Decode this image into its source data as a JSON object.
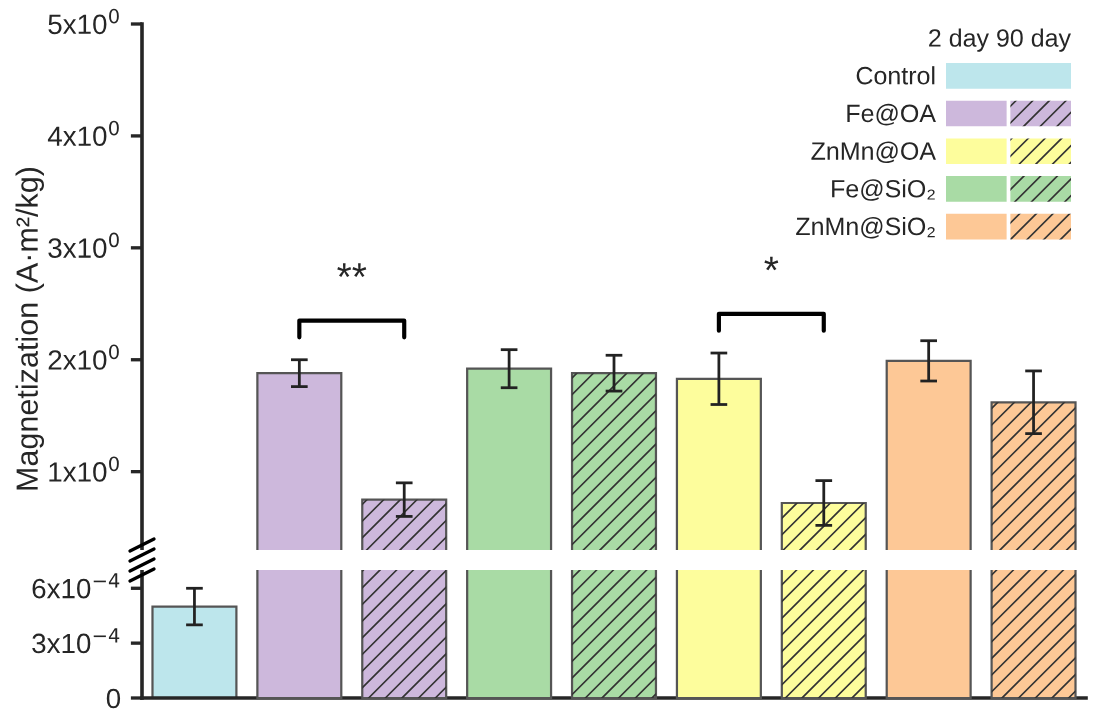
{
  "chart_data": [
    {
      "type": "bar",
      "ylabel": "Magnetization (A·m²/kg)",
      "categories": [
        null,
        null,
        null,
        null
      ],
      "legend_title": "2 day 90 day",
      "series": [
        {
          "colors": [
            "#cdb8dc",
            "#a9dba5",
            "#fdfd9c",
            "#fdc896"
          ],
          "values": [
            1.88,
            1.92,
            1.83,
            1.99
          ],
          "errors": [
            0.12,
            0.17,
            0.23,
            0.18
          ]
        },
        {
          "colors": [
            "#cdb8dc",
            "#a9dba5",
            "#fdfd9c",
            "#fdc896"
          ],
          "values": [
            0.75,
            1.88,
            0.72,
            1.62
          ],
          "errors": [
            0.15,
            0.16,
            0.2,
            0.28
          ]
        }
      ],
      "ylim": [
        0.3,
        5
      ],
      "yticks": [
        {
          "value": 1,
          "label": "1x10$^{0}$"
        },
        {
          "value": 2,
          "label": "2x10$^{0}$"
        },
        {
          "value": 3,
          "label": "3x10$^{0}$"
        },
        {
          "value": 4,
          "label": "4x10$^{0}$"
        },
        {
          "value": 5,
          "label": "5x10$^{0}$"
        }
      ],
      "annotations": [
        "Control",
        "Fe@OA",
        "ZnMn@OA",
        "Fe@SiO₂",
        "ZnMn@SiO₂",
        "**",
        "*"
      ],
      "tick_labels": "y"
    },
    {
      "type": "bar",
      "categories": [
        null
      ],
      "color": "#bde6ec",
      "values": [
        0.0005
      ],
      "errors": [
        0.0001
      ],
      "ylim": [
        0,
        0.0007
      ],
      "yticks": [
        0,
        {
          "value": 0.0003,
          "label": "3x10$^{−4}$"
        },
        {
          "value": 0.0006,
          "label": "6x10$^{−4}$"
        }
      ],
      "tick_labels": "y"
    }
  ]
}
